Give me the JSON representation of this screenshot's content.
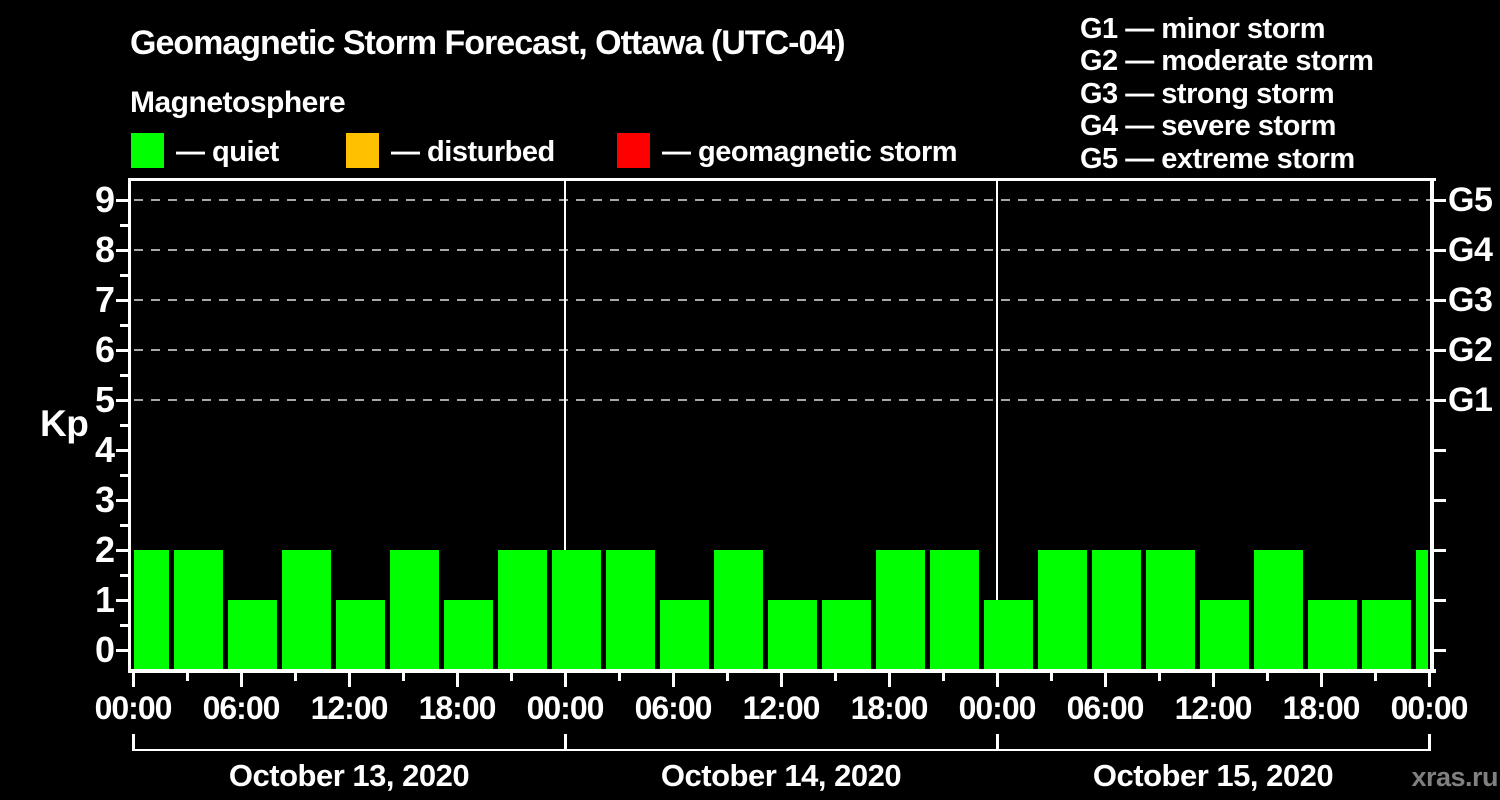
{
  "header": {
    "title": "Geomagnetic Storm Forecast, Ottawa (UTC-04)",
    "subtitle": "Magnetosphere"
  },
  "legend": {
    "items": [
      {
        "label": "— quiet",
        "color": "#00ff00"
      },
      {
        "label": "— disturbed",
        "color": "#ffc000"
      },
      {
        "label": "— geomagnetic storm",
        "color": "#ff0000"
      }
    ]
  },
  "g_scale_legend": {
    "lines": [
      "G1 — minor storm",
      "G2 — moderate storm",
      "G3 — strong storm",
      "G4 — severe storm",
      "G5 — extreme storm"
    ]
  },
  "watermark": "xras.ru",
  "chart_data": {
    "type": "bar",
    "title": "Geomagnetic Storm Forecast, Ottawa (UTC-04)",
    "ylabel": "Kp",
    "ylim": [
      0,
      9
    ],
    "yticks": [
      0,
      1,
      2,
      3,
      4,
      5,
      6,
      7,
      8,
      9
    ],
    "gridlines_at_kp": [
      5,
      6,
      7,
      8,
      9
    ],
    "right_axis_levels": [
      {
        "label": "G1",
        "kp": 5
      },
      {
        "label": "G2",
        "kp": 6
      },
      {
        "label": "G3",
        "kp": 7
      },
      {
        "label": "G4",
        "kp": 8
      },
      {
        "label": "G5",
        "kp": 9
      }
    ],
    "x_major_tick_labels": [
      "00:00",
      "06:00",
      "12:00",
      "18:00"
    ],
    "x_final_tick_label": "00:00",
    "x_minor_ticks_hours": [
      3,
      9,
      15,
      21
    ],
    "bar_color_hex": "#00ff00",
    "days": [
      {
        "date": "October 13, 2020",
        "kp_3h": [
          2,
          2,
          1,
          2,
          1,
          2,
          1,
          2
        ]
      },
      {
        "date": "October 14, 2020",
        "kp_3h": [
          2,
          2,
          1,
          2,
          1,
          1,
          2,
          2
        ]
      },
      {
        "date": "October 15, 2020",
        "kp_3h": [
          1,
          2,
          2,
          2,
          1,
          2,
          1,
          1
        ]
      }
    ],
    "trailing_partial_bar_kp": 2
  }
}
